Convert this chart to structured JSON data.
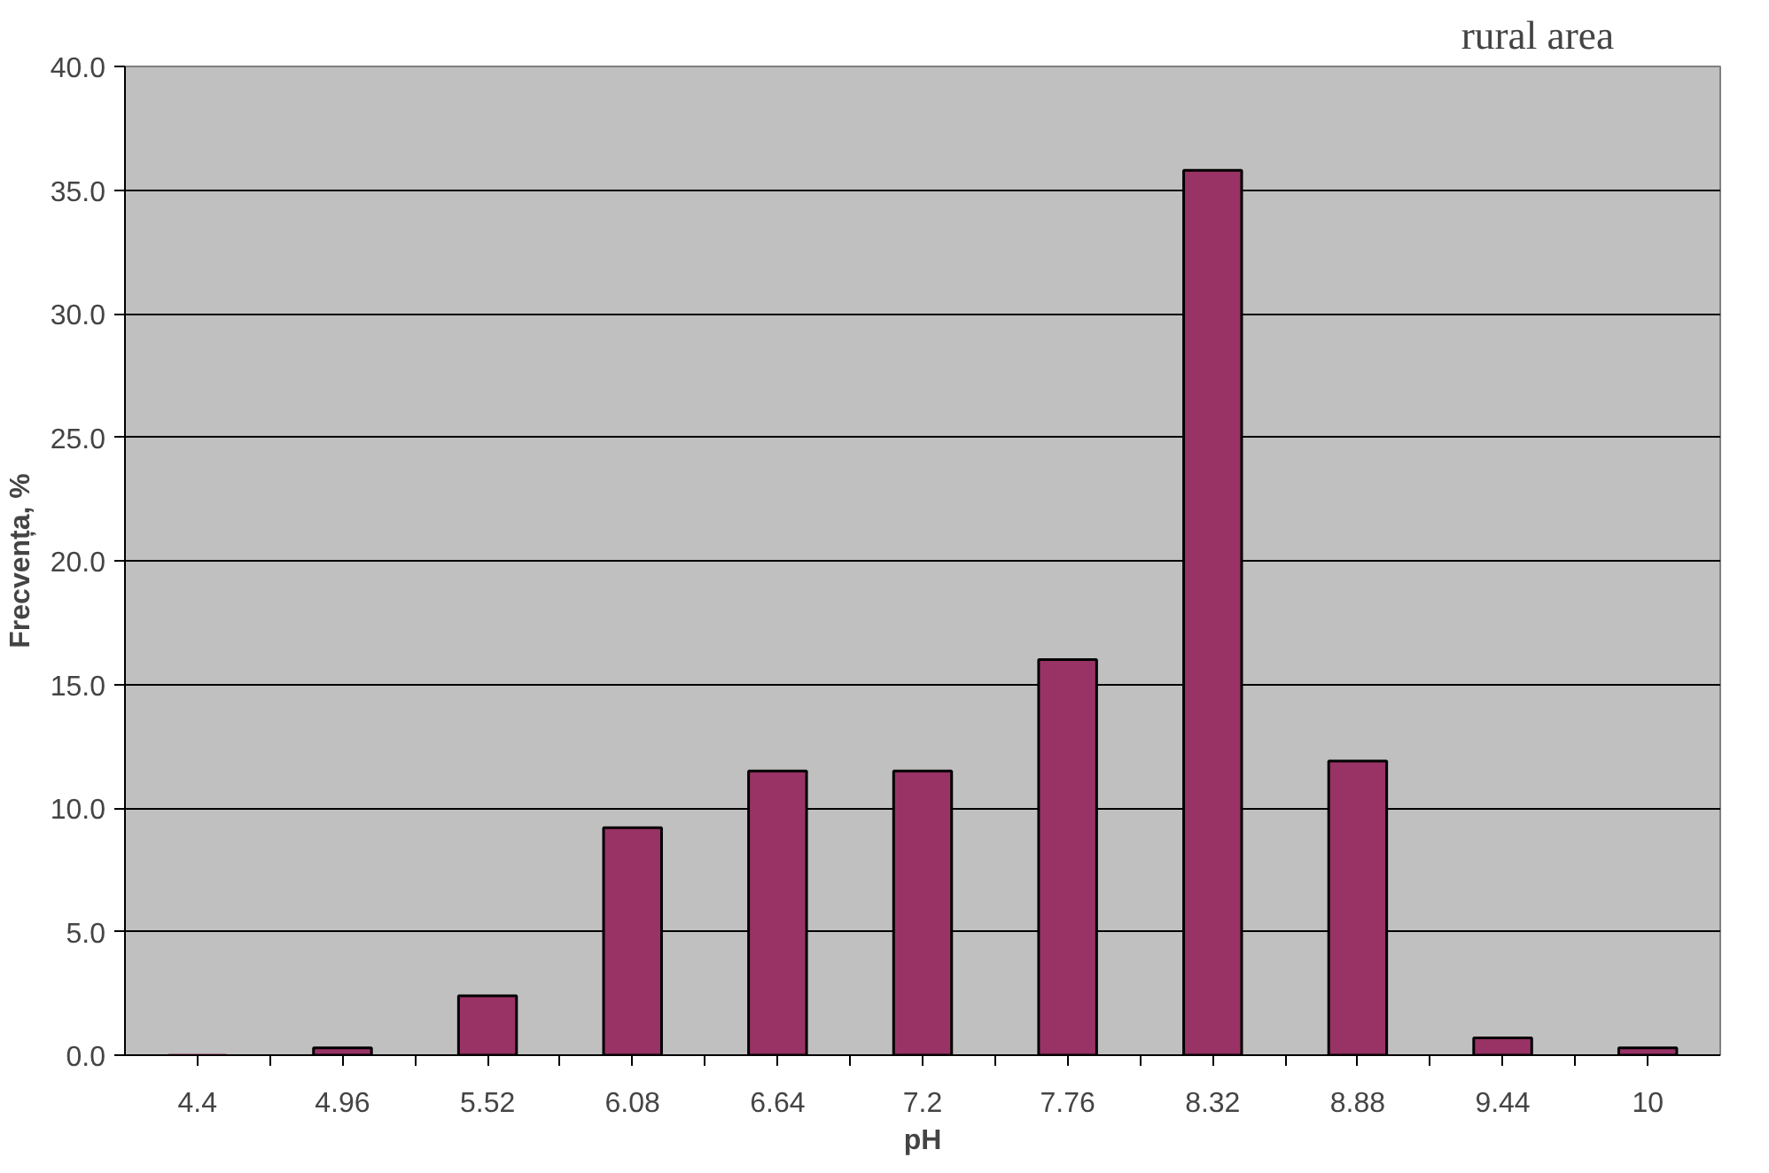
{
  "chart_data": {
    "type": "bar",
    "title": "rural area",
    "xlabel": "pH",
    "ylabel": "Frecvența, %",
    "categories": [
      "4.4",
      "4.96",
      "5.52",
      "6.08",
      "6.64",
      "7.2",
      "7.76",
      "8.32",
      "8.88",
      "9.44",
      "10"
    ],
    "values": [
      0,
      0.3,
      2.4,
      9.2,
      11.5,
      11.5,
      16.0,
      35.8,
      11.9,
      0.7,
      0.3
    ],
    "color": "#993366",
    "ylim": [
      0,
      40
    ],
    "yticks": [
      {
        "value": 0,
        "label": "0.0"
      },
      {
        "value": 5,
        "label": "5.0"
      },
      {
        "value": 10,
        "label": "10.0"
      },
      {
        "value": 15,
        "label": "15.0"
      },
      {
        "value": 20,
        "label": "20.0"
      },
      {
        "value": 25,
        "label": "25.0"
      },
      {
        "value": 30,
        "label": "30.0"
      },
      {
        "value": 35,
        "label": "35.0"
      },
      {
        "value": 40,
        "label": "40.0"
      }
    ],
    "grid": "y"
  }
}
